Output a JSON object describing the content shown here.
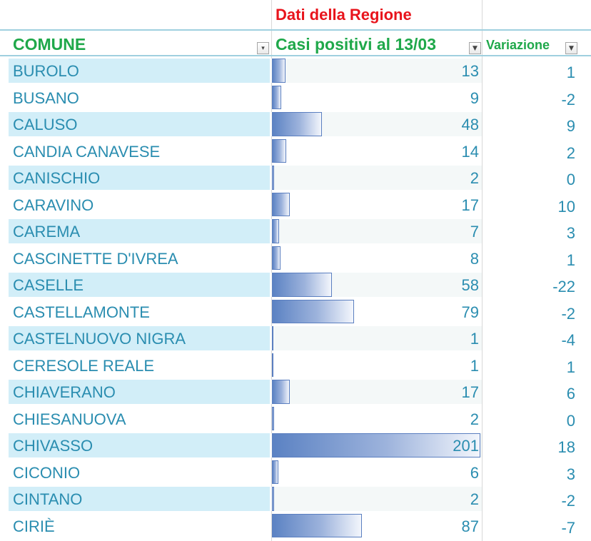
{
  "sheet": {
    "region_title": "Dati della Regione",
    "columns": {
      "comune": "COMUNE",
      "casi": "Casi positivi al 13/03",
      "variazione": "Variazione"
    },
    "filter_icons": {
      "comune": "sort-filter-icon",
      "casi": "dropdown-filter-icon",
      "variazione": "dropdown-filter-icon"
    },
    "colors": {
      "title_red": "#e8141c",
      "header_green": "#1fa84a",
      "text_teal": "#2a8db0",
      "band_blue": "#d2eef8",
      "bar_blue": "#5b82c3"
    },
    "max_casi": 201,
    "rows": [
      {
        "comune": "BUROLO",
        "casi": "13",
        "variazione": "1"
      },
      {
        "comune": "BUSANO",
        "casi": "9",
        "variazione": "-2"
      },
      {
        "comune": "CALUSO",
        "casi": "48",
        "variazione": "9"
      },
      {
        "comune": "CANDIA CANAVESE",
        "casi": "14",
        "variazione": "2"
      },
      {
        "comune": "CANISCHIO",
        "casi": "2",
        "variazione": "0"
      },
      {
        "comune": "CARAVINO",
        "casi": "17",
        "variazione": "10"
      },
      {
        "comune": "CAREMA",
        "casi": "7",
        "variazione": "3"
      },
      {
        "comune": "CASCINETTE D'IVREA",
        "casi": "8",
        "variazione": "1"
      },
      {
        "comune": "CASELLE",
        "casi": "58",
        "variazione": "-22"
      },
      {
        "comune": "CASTELLAMONTE",
        "casi": "79",
        "variazione": "-2"
      },
      {
        "comune": "CASTELNUOVO NIGRA",
        "casi": "1",
        "variazione": "-4"
      },
      {
        "comune": "CERESOLE REALE",
        "casi": "1",
        "variazione": "1"
      },
      {
        "comune": "CHIAVERANO",
        "casi": "17",
        "variazione": "6"
      },
      {
        "comune": "CHIESANUOVA",
        "casi": "2",
        "variazione": "0"
      },
      {
        "comune": "CHIVASSO",
        "casi": "201",
        "variazione": "18"
      },
      {
        "comune": "CICONIO",
        "casi": "6",
        "variazione": "3"
      },
      {
        "comune": "CINTANO",
        "casi": "2",
        "variazione": "-2"
      },
      {
        "comune": "CIRIÈ",
        "casi": "87",
        "variazione": "-7"
      }
    ]
  }
}
